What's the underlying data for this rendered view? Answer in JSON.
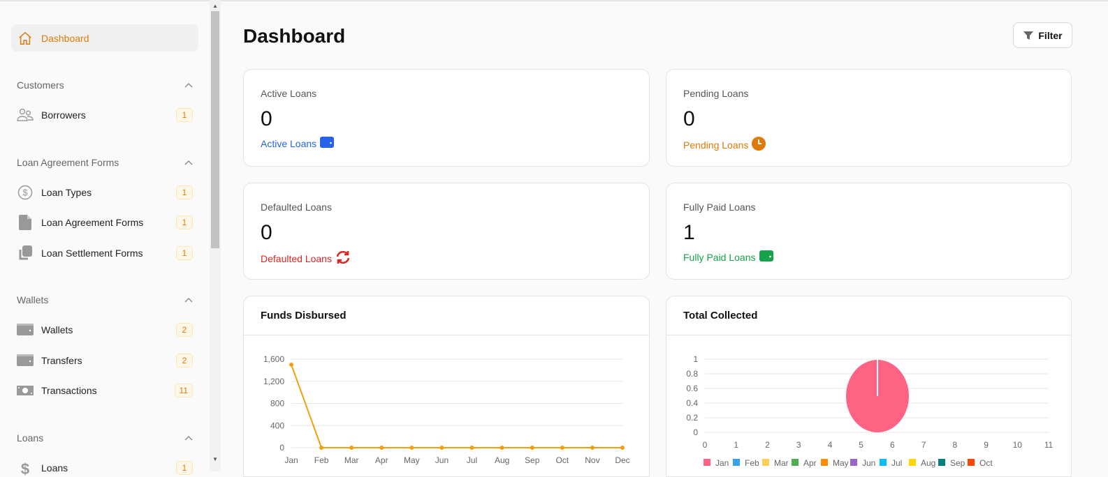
{
  "sidebar": {
    "dashboard": "Dashboard",
    "sections": [
      {
        "title": "Customers",
        "items": [
          {
            "label": "Borrowers",
            "count": "1",
            "icon": "users-icon"
          }
        ]
      },
      {
        "title": "Loan Agreement Forms",
        "items": [
          {
            "label": "Loan Types",
            "count": "1",
            "icon": "dollar-circle-icon"
          },
          {
            "label": "Loan Agreement Forms",
            "count": "1",
            "icon": "file-icon"
          },
          {
            "label": "Loan Settlement Forms",
            "count": "1",
            "icon": "copy-icon"
          }
        ]
      },
      {
        "title": "Wallets",
        "items": [
          {
            "label": "Wallets",
            "count": "2",
            "icon": "wallet-icon"
          },
          {
            "label": "Transfers",
            "count": "2",
            "icon": "wallet-icon"
          },
          {
            "label": "Transactions",
            "count": "11",
            "icon": "money-icon"
          }
        ]
      },
      {
        "title": "Loans",
        "items": [
          {
            "label": "Loans",
            "count": "1",
            "icon": "dollar-icon"
          }
        ]
      }
    ]
  },
  "header": {
    "title": "Dashboard",
    "filter": "Filter"
  },
  "stats": [
    {
      "title": "Active Loans",
      "value": "0",
      "link": "Active Loans",
      "color": "#2563eb",
      "icon": "wallet-icon"
    },
    {
      "title": "Pending Loans",
      "value": "0",
      "link": "Pending Loans",
      "color": "#e07a0b",
      "icon": "clock-icon"
    },
    {
      "title": "Defaulted Loans",
      "value": "0",
      "link": "Defaulted Loans",
      "color": "#dc2626",
      "icon": "refresh-icon"
    },
    {
      "title": "Fully Paid Loans",
      "value": "1",
      "link": "Fully Paid Loans",
      "color": "#16a34a",
      "icon": "wallet-icon"
    }
  ],
  "chart_data": [
    {
      "type": "line",
      "title": "Funds Disbursed",
      "categories": [
        "Jan",
        "Feb",
        "Mar",
        "Apr",
        "May",
        "Jun",
        "Jul",
        "Aug",
        "Sep",
        "Oct",
        "Nov",
        "Dec"
      ],
      "values": [
        1500,
        0,
        0,
        0,
        0,
        0,
        0,
        0,
        0,
        0,
        0,
        0
      ],
      "yticks": [
        "0",
        "400",
        "800",
        "1,200",
        "1,600"
      ],
      "ylim": [
        0,
        1600
      ],
      "color": "#f59e0b",
      "grid": true
    },
    {
      "type": "pie",
      "title": "Total Collected",
      "labels": [
        "Jan",
        "Feb",
        "Mar",
        "Apr",
        "May",
        "Jun",
        "Jul",
        "Aug",
        "Sep",
        "Oct"
      ],
      "values": [
        1,
        0,
        0,
        0,
        0,
        0,
        0,
        0,
        0,
        0
      ],
      "colors": [
        "#ff6384",
        "#36a2eb",
        "#ffce56",
        "#4caf50",
        "#ff8c00",
        "#9966cc",
        "#00bfff",
        "#ffd700",
        "#008080",
        "#ff4500"
      ],
      "yticks": [
        "0",
        "0.2",
        "0.4",
        "0.6",
        "0.8",
        "1"
      ],
      "xticks": [
        "0",
        "1",
        "2",
        "3",
        "4",
        "5",
        "6",
        "7",
        "8",
        "9",
        "10",
        "11"
      ],
      "legend": "bottom",
      "grid": true
    }
  ]
}
